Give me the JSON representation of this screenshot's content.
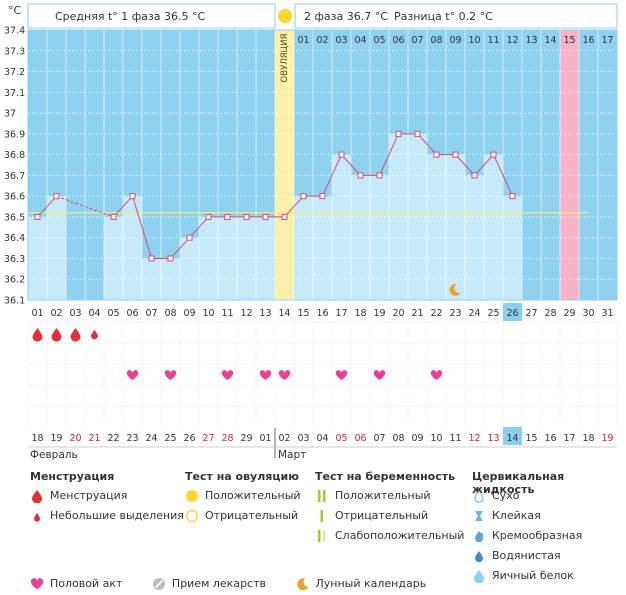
{
  "chart_data": {
    "type": "line",
    "unit_label": "°C",
    "ylim": [
      36.1,
      37.4
    ],
    "y_ticks": [
      "36.1",
      "36.2",
      "36.3",
      "36.4",
      "36.5",
      "36.6",
      "36.7",
      "36.8",
      "36.9",
      "37",
      "37.1",
      "37.2",
      "37.3",
      "37.4"
    ],
    "phase1_label": "Средняя t° 1 фаза 36.5 °C",
    "phase2_label": "2 фаза 36.7 °C",
    "diff_label": "Разница t° 0.2 °C",
    "ovulation_label": "ОВУЛЯЦИЯ",
    "ovulation_day": 14,
    "coverline": 36.52,
    "highlight_day": 29,
    "today_day": 26,
    "post_ovulation_days": [
      "01",
      "02",
      "03",
      "04",
      "05",
      "06",
      "07",
      "08",
      "09",
      "10",
      "11",
      "12",
      "13",
      "14",
      "15",
      "16",
      "17"
    ],
    "cycle_days": [
      "01",
      "02",
      "03",
      "04",
      "05",
      "06",
      "07",
      "08",
      "09",
      "10",
      "11",
      "12",
      "13",
      "14",
      "15",
      "16",
      "17",
      "18",
      "19",
      "20",
      "21",
      "22",
      "23",
      "24",
      "25",
      "26",
      "27",
      "28",
      "29",
      "30",
      "31"
    ],
    "temperatures": [
      36.5,
      36.6,
      null,
      null,
      36.5,
      36.6,
      36.3,
      36.3,
      36.4,
      36.5,
      36.5,
      36.5,
      36.5,
      36.5,
      36.6,
      36.6,
      36.8,
      36.7,
      36.7,
      36.9,
      36.9,
      36.8,
      36.8,
      36.7,
      36.8,
      36.6,
      null,
      null,
      null,
      null,
      null
    ],
    "dashed_segments": [
      [
        2,
        5
      ]
    ],
    "moon_day": 23,
    "menstruation": [
      {
        "day": 1,
        "size": "large"
      },
      {
        "day": 2,
        "size": "large"
      },
      {
        "day": 3,
        "size": "large"
      },
      {
        "day": 4,
        "size": "small"
      }
    ],
    "intercourse_days": [
      6,
      8,
      11,
      13,
      14,
      17,
      19,
      22
    ],
    "calendar_dates": [
      {
        "d": "18",
        "c": "#333333"
      },
      {
        "d": "19",
        "c": "#333333"
      },
      {
        "d": "20",
        "c": "#d2233c"
      },
      {
        "d": "21",
        "c": "#d2233c"
      },
      {
        "d": "22",
        "c": "#333333"
      },
      {
        "d": "23",
        "c": "#333333"
      },
      {
        "d": "24",
        "c": "#333333"
      },
      {
        "d": "25",
        "c": "#333333"
      },
      {
        "d": "26",
        "c": "#333333"
      },
      {
        "d": "27",
        "c": "#d2233c"
      },
      {
        "d": "28",
        "c": "#d2233c"
      },
      {
        "d": "29",
        "c": "#333333"
      },
      {
        "d": "01",
        "c": "#333333"
      },
      {
        "d": "02",
        "c": "#333333"
      },
      {
        "d": "03",
        "c": "#333333"
      },
      {
        "d": "04",
        "c": "#333333"
      },
      {
        "d": "05",
        "c": "#d2233c"
      },
      {
        "d": "06",
        "c": "#d2233c"
      },
      {
        "d": "07",
        "c": "#333333"
      },
      {
        "d": "08",
        "c": "#333333"
      },
      {
        "d": "09",
        "c": "#333333"
      },
      {
        "d": "10",
        "c": "#333333"
      },
      {
        "d": "11",
        "c": "#333333"
      },
      {
        "d": "12",
        "c": "#d2233c"
      },
      {
        "d": "13",
        "c": "#d2233c"
      },
      {
        "d": "14",
        "c": "#333333"
      },
      {
        "d": "15",
        "c": "#333333"
      },
      {
        "d": "16",
        "c": "#333333"
      },
      {
        "d": "17",
        "c": "#333333"
      },
      {
        "d": "18",
        "c": "#333333"
      },
      {
        "d": "19",
        "c": "#d2233c"
      }
    ],
    "month1": "Февраль",
    "month2": "Март",
    "month2_start_day": 13,
    "colors": {
      "sky": "#8fd2ef",
      "bar": "#c7eafa",
      "ovulation": "#fdf0a8",
      "highlight": "#f9b2c8",
      "today": "#8ad0ee",
      "line": "#d24b7c",
      "marker": "#d24b7c",
      "heart": "#ee3e95",
      "drop": "#e0303a",
      "moon": "#f0a030"
    }
  },
  "legend": {
    "menstruation": {
      "title": "Менструация",
      "items": [
        "Менструация",
        "Небольшие выделения"
      ]
    },
    "ovulation_test": {
      "title": "Тест на овуляцию",
      "items": [
        "Положительный",
        "Отрицательный"
      ]
    },
    "pregnancy_test": {
      "title": "Тест на беременность",
      "items": [
        "Положительный",
        "Отрицательный",
        "Слабоположительный"
      ]
    },
    "cervical_fluid": {
      "title": "Цервикальная жидкость",
      "items": [
        "Сухо",
        "Клейкая",
        "Кремообразная",
        "Водянистая",
        "Яичный белок"
      ]
    },
    "bottom": [
      "Половой акт",
      "Прием лекарств",
      "Лунный календарь"
    ]
  }
}
